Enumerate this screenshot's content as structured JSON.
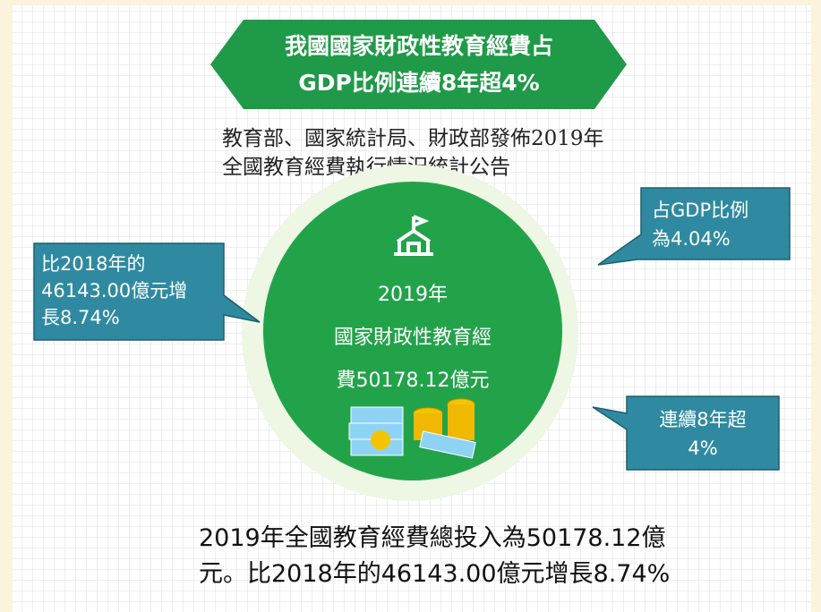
{
  "header": {
    "title_lines": [
      "我國國家財政性教育經費占",
      "GDP比例連續8年超4%"
    ]
  },
  "subtitle_lines": [
    "教育部、國家統計局、財政部發佈2019年",
    "全國教育經費執行情況統計公告"
  ],
  "center_lines": [
    "2019年",
    "國家財政性教育經",
    "費50178.12億元"
  ],
  "callouts": [
    {
      "lines": [
        "比2018年的",
        "46143.00億元增",
        "長8.74%"
      ]
    },
    {
      "lines": [
        "占GDP比例",
        "為4.04%"
      ]
    },
    {
      "lines": [
        "連續8年超",
        "4%"
      ]
    }
  ],
  "summary_lines": [
    "2019年全國教育經費總投入為50178.12億",
    "元。比2018年的46143.00億元增長8.74%"
  ]
}
